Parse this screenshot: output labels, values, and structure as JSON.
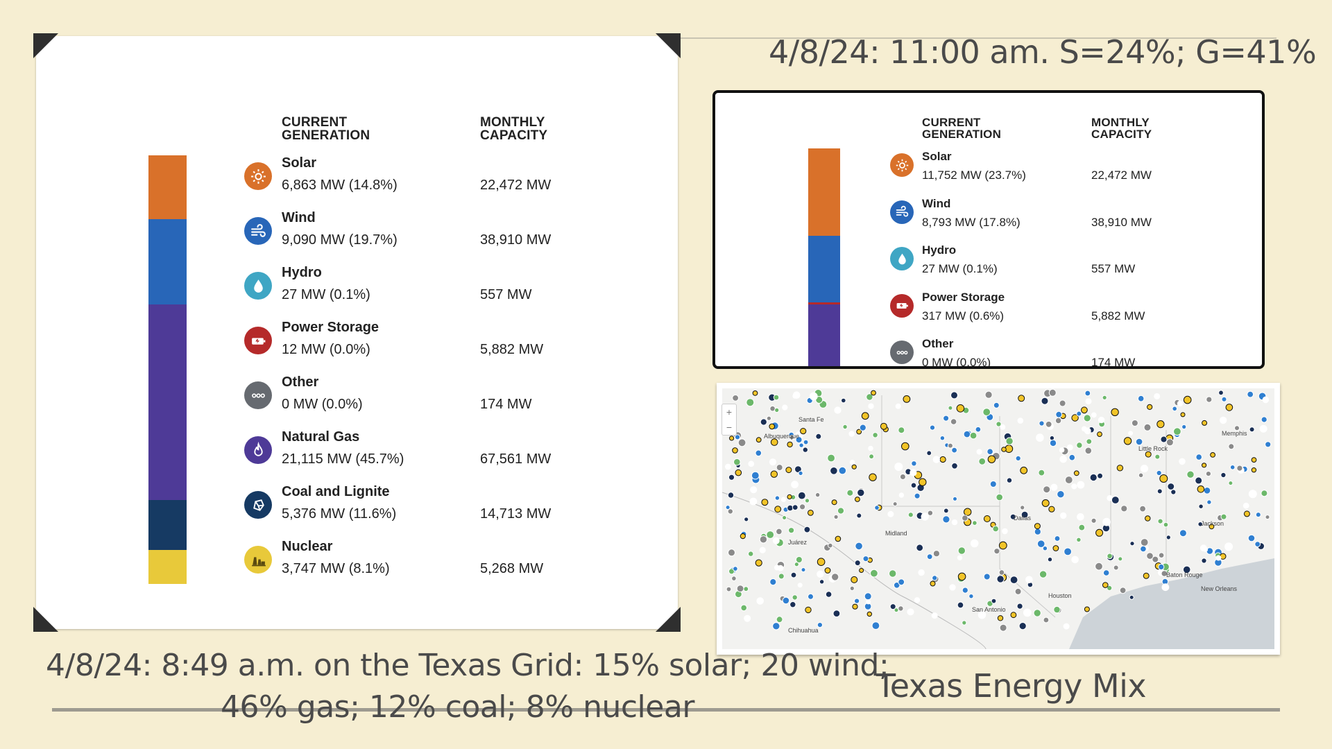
{
  "slide": {
    "title_right": "4/8/24: 11:00 am. S=24%; G=41%",
    "caption_left_line1": "4/8/24: 8:49 a.m. on the Texas Grid: 15% solar; 20 wind;",
    "caption_left_line2": "46% gas; 12% coal; 8% nuclear",
    "caption_right": "Texas Energy Mix"
  },
  "left_panel": {
    "col_current_1": "CURRENT",
    "col_current_2": "GENERATION",
    "col_monthly_1": "MONTHLY",
    "col_monthly_2": "CAPACITY",
    "rows": [
      {
        "name": "Solar",
        "value": "6,863 MW (14.8%)",
        "capacity": "22,472 MW",
        "color": "#d9712a",
        "icon": "sun-icon",
        "share": 14.8
      },
      {
        "name": "Wind",
        "value": "9,090 MW (19.7%)",
        "capacity": "38,910 MW",
        "color": "#2866b8",
        "icon": "wind-icon",
        "share": 19.7
      },
      {
        "name": "Hydro",
        "value": "27 MW (0.1%)",
        "capacity": "557 MW",
        "color": "#3fa6c4",
        "icon": "water-drop-icon",
        "share": 0.1
      },
      {
        "name": "Power Storage",
        "value": "12 MW (0.0%)",
        "capacity": "5,882 MW",
        "color": "#b52a2a",
        "icon": "battery-icon",
        "share": 0.0
      },
      {
        "name": "Other",
        "value": "0 MW (0.0%)",
        "capacity": "174 MW",
        "color": "#666a70",
        "icon": "ellipsis-icon",
        "share": 0.0
      },
      {
        "name": "Natural Gas",
        "value": "21,115 MW (45.7%)",
        "capacity": "67,561 MW",
        "color": "#4e3a97",
        "icon": "flame-icon",
        "share": 45.7
      },
      {
        "name": "Coal and Lignite",
        "value": "5,376 MW (11.6%)",
        "capacity": "14,713 MW",
        "color": "#163a63",
        "icon": "coal-icon",
        "share": 11.6
      },
      {
        "name": "Nuclear",
        "value": "3,747 MW (8.1%)",
        "capacity": "5,268 MW",
        "color": "#e8c93a",
        "icon": "nuclear-plant-icon",
        "share": 8.1
      }
    ]
  },
  "right_panel": {
    "col_current_1": "CURRENT",
    "col_current_2": "GENERATION",
    "col_monthly_1": "MONTHLY",
    "col_monthly_2": "CAPACITY",
    "rows": [
      {
        "name": "Solar",
        "value": "11,752 MW (23.7%)",
        "capacity": "22,472 MW",
        "color": "#d9712a",
        "icon": "sun-icon"
      },
      {
        "name": "Wind",
        "value": "8,793 MW (17.8%)",
        "capacity": "38,910 MW",
        "color": "#2866b8",
        "icon": "wind-icon"
      },
      {
        "name": "Hydro",
        "value": "27 MW (0.1%)",
        "capacity": "557 MW",
        "color": "#3fa6c4",
        "icon": "water-drop-icon"
      },
      {
        "name": "Power Storage",
        "value": "317 MW (0.6%)",
        "capacity": "5,882 MW",
        "color": "#b52a2a",
        "icon": "battery-icon"
      },
      {
        "name": "Other",
        "value": "0 MW (0.0%)",
        "capacity": "174 MW",
        "color": "#666a70",
        "icon": "ellipsis-icon"
      }
    ],
    "bar_segments": [
      {
        "name": "Solar",
        "color": "#d9712a",
        "share": 23.7
      },
      {
        "name": "Wind",
        "color": "#2866b8",
        "share": 17.8
      },
      {
        "name": "Power Storage",
        "color": "#b52a2a",
        "share": 0.6
      },
      {
        "name": "Natural Gas",
        "color": "#4e3a97",
        "share": 41
      }
    ]
  },
  "map": {
    "labels": [
      "Santa Fe",
      "Albuquerque",
      "Little Rock",
      "Memphis",
      "Jackson",
      "Baton Rouge",
      "New Orleans",
      "San Antonio",
      "Houston",
      "Chihuahua",
      "Juárez",
      "Midland",
      "Dallas"
    ]
  }
}
